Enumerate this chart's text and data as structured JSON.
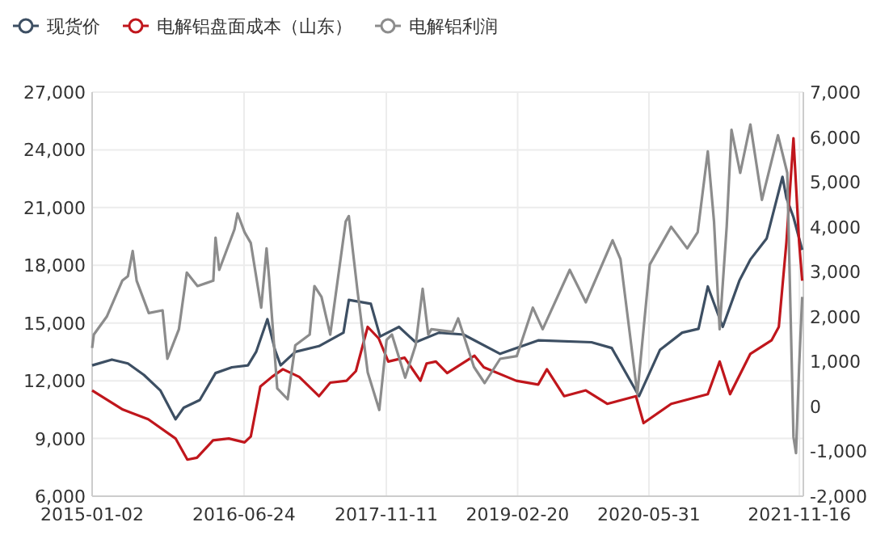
{
  "chart_data": {
    "type": "line",
    "grid": true,
    "legend": "top left",
    "xlim": [
      "2015-01-02",
      "2021-11-30"
    ],
    "xticks": [
      "2015-01-02",
      "2016-06-24",
      "2017-11-11",
      "2019-02-20",
      "2020-05-31",
      "2021-11-16"
    ],
    "ylim": [
      6000,
      27000
    ],
    "yticks": [
      {
        "value": 6000,
        "label": "6,000"
      },
      {
        "value": 9000,
        "label": "9,000"
      },
      {
        "value": 12000,
        "label": "12,000"
      },
      {
        "value": 15000,
        "label": "15,000"
      },
      {
        "value": 18000,
        "label": "18,000"
      },
      {
        "value": 21000,
        "label": "21,000"
      },
      {
        "value": 24000,
        "label": "24,000"
      },
      {
        "value": 27000,
        "label": "27,000"
      }
    ],
    "y2lim": [
      -2000,
      7000
    ],
    "y2ticks": [
      {
        "value": -2000,
        "label": "-2,000"
      },
      {
        "value": -1000,
        "label": "-1,000"
      },
      0,
      {
        "value": 1000,
        "label": "1,000"
      },
      {
        "value": 2000,
        "label": "2,000"
      },
      {
        "value": 3000,
        "label": "3,000"
      },
      {
        "value": 4000,
        "label": "4,000"
      },
      {
        "value": 5000,
        "label": "5,000"
      },
      {
        "value": 6000,
        "label": "6,000"
      },
      {
        "value": 7000,
        "label": "7,000"
      }
    ],
    "series": [
      {
        "name": "现货价",
        "color": "#3d4f63",
        "x": [
          "2015-01-02",
          "2015-03-13",
          "2015-05-09",
          "2015-07-05",
          "2015-09-01",
          "2015-10-25",
          "2015-11-23",
          "2016-01-19",
          "2016-03-15",
          "2016-05-12",
          "2016-07-08",
          "2016-08-06",
          "2016-09-15",
          "2016-10-12",
          "2016-11-01",
          "2016-12-23",
          "2017-03-17",
          "2017-06-12",
          "2017-07-01",
          "2017-09-17",
          "2017-10-20",
          "2017-12-26",
          "2018-02-23",
          "2018-05-17",
          "2018-08-12",
          "2018-12-20",
          "2019-05-04",
          "2019-11-09",
          "2020-01-20",
          "2020-04-26",
          "2020-07-09",
          "2020-09-26",
          "2020-11-23",
          "2020-12-26",
          "2021-02-17",
          "2021-04-17",
          "2021-05-26",
          "2021-07-23",
          "2021-09-17",
          "2021-10-01",
          "2021-10-26",
          "2021-11-26"
        ],
        "values": [
          12800,
          13100,
          12900,
          12300,
          11500,
          10000,
          10600,
          11000,
          12400,
          12700,
          12800,
          13500,
          15200,
          13600,
          12800,
          13500,
          13800,
          14500,
          16200,
          16000,
          14300,
          14800,
          14000,
          14500,
          14400,
          13400,
          14100,
          14000,
          13700,
          11200,
          13600,
          14500,
          14700,
          16900,
          14800,
          17200,
          18300,
          19400,
          22600,
          21500,
          20500,
          18800
        ]
      },
      {
        "name": "电解铝盘面成本（山东）",
        "color": "#c0161c",
        "x": [
          "2015-01-02",
          "2015-04-21",
          "2015-07-20",
          "2015-10-25",
          "2015-12-06",
          "2016-01-09",
          "2016-03-06",
          "2016-05-01",
          "2016-06-26",
          "2016-07-18",
          "2016-08-21",
          "2016-10-01",
          "2016-11-09",
          "2017-01-06",
          "2017-03-17",
          "2017-04-26",
          "2017-06-23",
          "2017-07-26",
          "2017-09-06",
          "2017-10-15",
          "2017-11-18",
          "2018-01-15",
          "2018-03-12",
          "2018-04-03",
          "2018-05-06",
          "2018-06-15",
          "2018-09-20",
          "2018-10-23",
          "2019-02-15",
          "2019-05-04",
          "2019-06-04",
          "2019-08-04",
          "2019-10-20",
          "2020-01-04",
          "2020-04-15",
          "2020-05-12",
          "2020-08-18",
          "2020-12-26",
          "2021-02-06",
          "2021-03-15",
          "2021-05-26",
          "2021-08-09",
          "2021-09-04",
          "2021-10-01",
          "2021-10-26",
          "2021-11-15",
          "2021-11-26"
        ],
        "values": [
          11500,
          10500,
          10000,
          9000,
          7900,
          8000,
          8900,
          9000,
          8800,
          9100,
          11700,
          12200,
          12600,
          12200,
          11200,
          11900,
          12000,
          12500,
          14800,
          14200,
          13000,
          13200,
          12000,
          12900,
          13000,
          12400,
          13300,
          12700,
          12000,
          11800,
          12600,
          11200,
          11500,
          10800,
          11200,
          9800,
          10800,
          11300,
          13000,
          11300,
          13400,
          14100,
          14800,
          19200,
          24600,
          19200,
          17200
        ]
      },
      {
        "name": "电解铝利润",
        "color": "#8c8c8c",
        "axis": "y2",
        "x": [
          "2015-01-02",
          "2015-01-08",
          "2015-02-23",
          "2015-04-19",
          "2015-05-09",
          "2015-05-26",
          "2015-06-09",
          "2015-07-22",
          "2015-09-09",
          "2015-09-26",
          "2015-11-06",
          "2015-12-04",
          "2016-01-11",
          "2016-03-07",
          "2016-03-15",
          "2016-03-28",
          "2016-05-21",
          "2016-06-01",
          "2016-06-26",
          "2016-07-18",
          "2016-08-24",
          "2016-09-12",
          "2016-09-21",
          "2016-10-20",
          "2016-11-26",
          "2016-12-23",
          "2017-02-12",
          "2017-03-01",
          "2017-03-26",
          "2017-04-26",
          "2017-06-20",
          "2017-07-01",
          "2017-08-01",
          "2017-09-06",
          "2017-10-17",
          "2017-11-12",
          "2017-12-01",
          "2018-01-17",
          "2018-02-23",
          "2018-03-20",
          "2018-04-09",
          "2018-04-20",
          "2018-07-04",
          "2018-07-24",
          "2018-09-18",
          "2018-10-26",
          "2018-12-20",
          "2019-02-17",
          "2019-04-15",
          "2019-05-20",
          "2019-08-24",
          "2019-10-20",
          "2020-01-23",
          "2020-02-20",
          "2020-04-20",
          "2020-06-03",
          "2020-08-18",
          "2020-10-14",
          "2020-11-20",
          "2020-12-26",
          "2021-01-17",
          "2021-02-06",
          "2021-03-03",
          "2021-03-20",
          "2021-04-20",
          "2021-05-26",
          "2021-07-06",
          "2021-09-01",
          "2021-10-04",
          "2021-10-26",
          "2021-11-04",
          "2021-11-15",
          "2021-11-26"
        ],
        "values": [
          1300,
          1600,
          2000,
          2800,
          2900,
          3460,
          2800,
          2080,
          2140,
          1060,
          1720,
          2980,
          2680,
          2800,
          3760,
          3040,
          3940,
          4300,
          3880,
          3640,
          2200,
          3520,
          2860,
          400,
          160,
          1360,
          1600,
          2680,
          2440,
          1600,
          4120,
          4240,
          2560,
          760,
          -80,
          1480,
          1600,
          640,
          1360,
          2620,
          1600,
          1720,
          1660,
          1960,
          880,
          520,
          1060,
          1120,
          2200,
          1720,
          3040,
          2320,
          3700,
          3280,
          280,
          3160,
          4000,
          3520,
          3880,
          5680,
          4120,
          1720,
          4000,
          6160,
          5200,
          6280,
          4600,
          6040,
          5200,
          -680,
          -1040,
          880,
          2440
        ]
      }
    ]
  }
}
